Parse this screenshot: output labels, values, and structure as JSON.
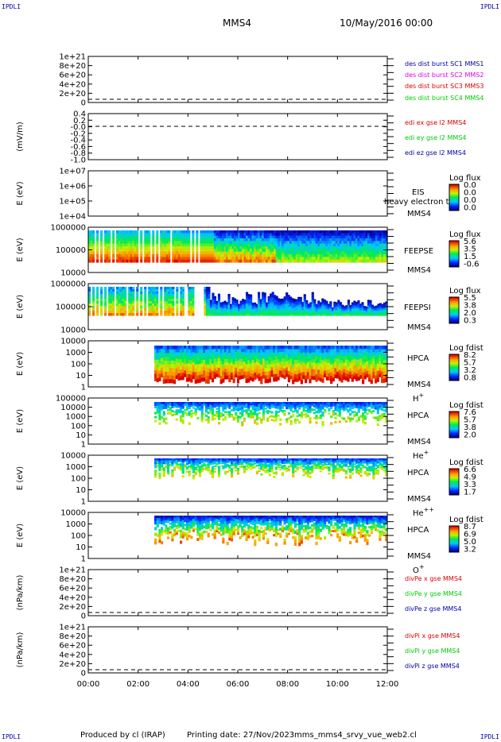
{
  "corner_label": "IPDLI",
  "header": {
    "mission": "MMS4",
    "date": "10/May/2016 00:00"
  },
  "footer": {
    "produced": "Produced by cl (IRAP)",
    "printing": "Printing date: 27/Nov/2023",
    "file": "mms_mms4_srvy_vue_web2.cl"
  },
  "colors": {
    "red": "#dd0000",
    "green": "#00cc00",
    "blue": "#0000aa",
    "magenta": "#dd00dd"
  },
  "chart_data": [
    {
      "id": "p1",
      "type": "line",
      "ylabel": "",
      "ylim": [
        0,
        1e+21
      ],
      "ticks": [
        "1e+21",
        "8e+20",
        "6e+20",
        "4e+20",
        "2e+20",
        "0"
      ],
      "zero_line": true,
      "series": [
        {
          "name": "des dist burst SC1 MMS1",
          "color": "#0000aa",
          "values": []
        },
        {
          "name": "des dist burst SC2 MMS2",
          "color": "#dd00dd",
          "values": []
        },
        {
          "name": "des dist burst SC3 MMS3",
          "color": "#dd0000",
          "values": []
        },
        {
          "name": "des dist burst SC4 MMS4",
          "color": "#00cc00",
          "values": []
        }
      ]
    },
    {
      "id": "p2",
      "type": "line",
      "ylabel": "(mV/m)",
      "ylim": [
        -1.0,
        0.4
      ],
      "ticks": [
        "0.4",
        "0.2",
        "-0.0",
        "-0.2",
        "-0.4",
        "-0.6",
        "-0.8",
        "-1.0"
      ],
      "zero_line": true,
      "series": [
        {
          "name": "edi ex gse l2 MMS4",
          "color": "#dd0000",
          "values": []
        },
        {
          "name": "edi ey gse l2 MMS4",
          "color": "#00cc00",
          "values": []
        },
        {
          "name": "edi ez gse l2 MMS4",
          "color": "#0000aa",
          "values": []
        }
      ]
    },
    {
      "id": "p3",
      "type": "heatmap",
      "ylabel": "E (eV)",
      "ylim": [
        10000,
        10000000
      ],
      "log": true,
      "ticks": [
        "1e+07",
        "1e+06",
        "1e+05",
        "1e+04"
      ],
      "instrument": "EIS",
      "sc": "MMS4",
      "overlay": "heavy electron to",
      "colorbar": {
        "title": "Log flux",
        "labels": [
          "0.0",
          "0.0",
          "0.0",
          "0.0"
        ]
      }
    },
    {
      "id": "p4",
      "type": "heatmap",
      "ylabel": "E (eV)",
      "ylim": [
        10000,
        1000000
      ],
      "log": true,
      "ticks": [
        "1000000",
        "100000",
        "10000"
      ],
      "instrument": "FEEPSE",
      "sc": "MMS4",
      "colorbar": {
        "title": "Log flux",
        "labels": [
          "5.6",
          "3.5",
          "1.5",
          "-0.6"
        ]
      }
    },
    {
      "id": "p5",
      "type": "heatmap",
      "ylabel": "E (eV)",
      "ylim": [
        10000,
        1000000
      ],
      "log": true,
      "ticks": [
        "1000000",
        "100000",
        "10000"
      ],
      "instrument": "FEEPSI",
      "sc": "MMS4",
      "colorbar": {
        "title": "Log flux",
        "labels": [
          "5.5",
          "3.8",
          "2.0",
          "0.3"
        ]
      }
    },
    {
      "id": "p6",
      "type": "heatmap",
      "ylabel": "E (eV)",
      "ylim": [
        1,
        10000
      ],
      "log": true,
      "ticks": [
        "10000",
        "1000",
        "100",
        "10",
        "1"
      ],
      "instrument": "HPCA",
      "sc": "MMS4",
      "species": "H",
      "charge": "+",
      "colorbar": {
        "title": "Log fdist",
        "labels": [
          "8.2",
          "5.7",
          "3.2",
          "0.8"
        ]
      }
    },
    {
      "id": "p7",
      "type": "heatmap",
      "ylabel": "E (eV)",
      "ylim": [
        1,
        100000
      ],
      "log": true,
      "ticks": [
        "100000",
        "10000",
        "1000",
        "100",
        "10",
        "1"
      ],
      "instrument": "HPCA",
      "sc": "MMS4",
      "species": "He",
      "charge": "+",
      "colorbar": {
        "title": "Log fdist",
        "labels": [
          "7.6",
          "5.7",
          "3.8",
          "2.0"
        ]
      }
    },
    {
      "id": "p8",
      "type": "heatmap",
      "ylabel": "E (eV)",
      "ylim": [
        1,
        10000
      ],
      "log": true,
      "ticks": [
        "10000",
        "1000",
        "100",
        "10",
        "1"
      ],
      "instrument": "HPCA",
      "sc": "MMS4",
      "species": "He",
      "charge": "++",
      "colorbar": {
        "title": "Log fdist",
        "labels": [
          "6.6",
          "4.9",
          "3.3",
          "1.7"
        ]
      }
    },
    {
      "id": "p9",
      "type": "heatmap",
      "ylabel": "E (eV)",
      "ylim": [
        1,
        10000
      ],
      "log": true,
      "ticks": [
        "10000",
        "1000",
        "100",
        "10",
        "1"
      ],
      "instrument": "HPCA",
      "sc": "MMS4",
      "species": "O",
      "charge": "+",
      "colorbar": {
        "title": "Log fdist",
        "labels": [
          "8.7",
          "6.9",
          "5.0",
          "3.2"
        ]
      }
    },
    {
      "id": "p10",
      "type": "line",
      "ylabel": "(nPa/km)",
      "ylim": [
        0,
        1e+21
      ],
      "ticks": [
        "1e+21",
        "8e+20",
        "6e+20",
        "4e+20",
        "2e+20",
        "0"
      ],
      "zero_line": true,
      "series": [
        {
          "name": "divPe x gse MMS4",
          "color": "#dd0000",
          "values": []
        },
        {
          "name": "divPe y gse MMS4",
          "color": "#00cc00",
          "values": []
        },
        {
          "name": "divPe z gse MMS4",
          "color": "#0000aa",
          "values": []
        }
      ]
    },
    {
      "id": "p11",
      "type": "line",
      "ylabel": "(nPa/km)",
      "ylim": [
        0,
        1e+21
      ],
      "ticks": [
        "1e+21",
        "8e+20",
        "6e+20",
        "4e+20",
        "2e+20",
        "0"
      ],
      "zero_line": true,
      "series": [
        {
          "name": "divPi x gse MMS4",
          "color": "#dd0000",
          "values": []
        },
        {
          "name": "divPi y gse MMS4",
          "color": "#00cc00",
          "values": []
        },
        {
          "name": "divPi z gse MMS4",
          "color": "#0000aa",
          "values": []
        }
      ]
    }
  ],
  "time_axis": {
    "ticks": [
      "00:00",
      "02:00",
      "04:00",
      "06:00",
      "08:00",
      "10:00",
      "12:00"
    ]
  }
}
